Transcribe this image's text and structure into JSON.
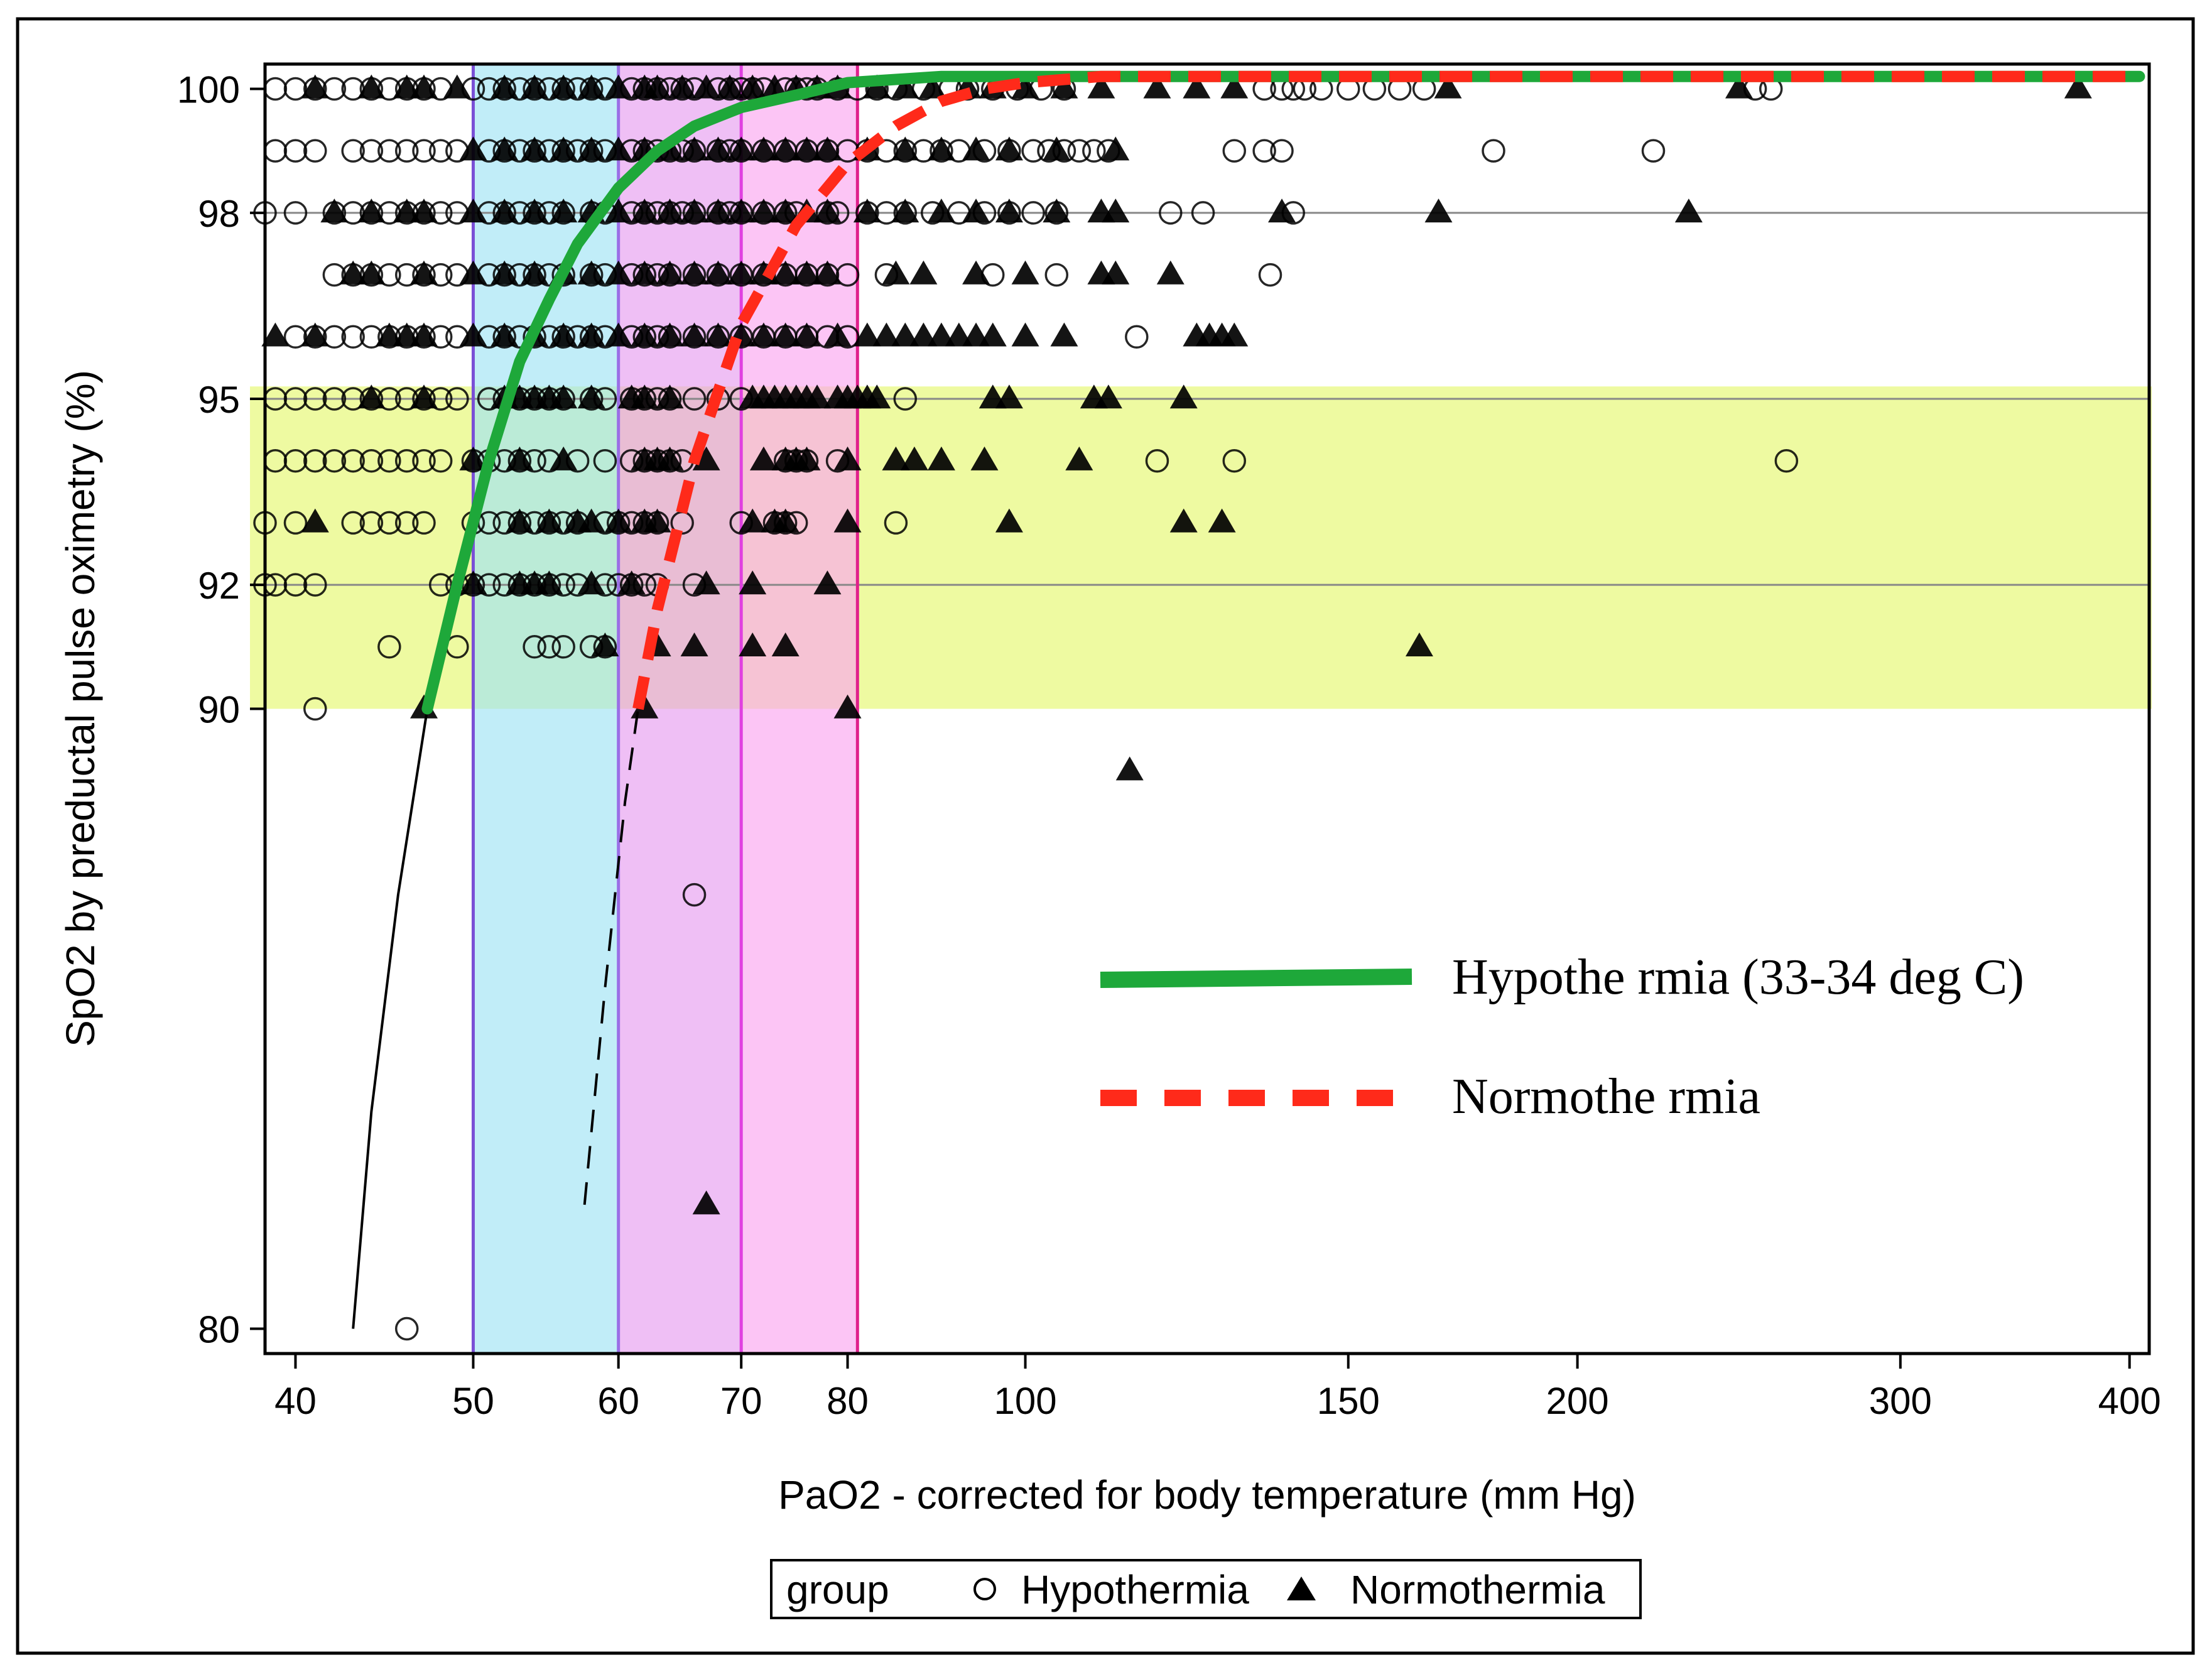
{
  "chart_data": {
    "type": "scatter",
    "xlabel": "PaO2 - corrected for body temperature (mm Hg)",
    "ylabel": "SpO2 by preductal pulse oximetry (%)",
    "x_scale": "log",
    "x_ticks": [
      40,
      50,
      60,
      70,
      80,
      100,
      150,
      200,
      300,
      400
    ],
    "y_ticks": [
      80,
      90,
      92,
      95,
      98,
      100
    ],
    "x_range": [
      38.5,
      410
    ],
    "y_range": [
      79.6,
      100.4
    ],
    "grid": "horizontal gridlines at 92, 95 and 98",
    "shaded_regions": [
      {
        "name": "SpO2 90-95 band",
        "axis": "y",
        "from": 90,
        "to": 95.2,
        "color": "#eaf98a"
      },
      {
        "name": "PaO2 50-60 band",
        "axis": "x",
        "from": 50,
        "to": 60,
        "color": "#9fe3f5"
      },
      {
        "name": "PaO2 60-70 band",
        "axis": "x",
        "from": 60,
        "to": 70,
        "color": "#e79cf0"
      },
      {
        "name": "PaO2 70-80 band",
        "axis": "x",
        "from": 70,
        "to": 81,
        "color": "#fba6ef"
      }
    ],
    "vertical_lines": [
      {
        "x": 50,
        "color": "#7a4fd6"
      },
      {
        "x": 60,
        "color": "#9a6ee6"
      },
      {
        "x": 70,
        "color": "#e040e0"
      },
      {
        "x": 81,
        "color": "#e0208c"
      }
    ],
    "legend": {
      "title": "group",
      "entries": [
        {
          "label": "Hypothermia",
          "marker": "circle"
        },
        {
          "label": "Normothermia",
          "marker": "triangle"
        }
      ],
      "placement": "bottom-center"
    },
    "curve_legend": {
      "entries": [
        {
          "label": "Hypothe rmia (33-34 deg C)",
          "style": "solid",
          "color": "#1ea83a"
        },
        {
          "label": "Normothe rmia",
          "style": "dashed",
          "color": "#ff2a1a"
        }
      ],
      "placement": "lower-right inside plot"
    },
    "series": [
      {
        "name": "Hypothermia (33-34 deg C)",
        "kind": "fit-curve",
        "color": "#1ea83a",
        "style": "solid",
        "x": [
          47.2,
          49,
          51,
          53,
          55,
          57,
          60,
          63,
          66,
          70,
          75,
          80,
          90,
          100,
          405
        ],
        "y": [
          90,
          92,
          94,
          95.6,
          96.6,
          97.5,
          98.4,
          99,
          99.4,
          99.7,
          99.9,
          100.1,
          100.2,
          100.2,
          100.2
        ]
      },
      {
        "name": "Normothermia",
        "kind": "fit-curve",
        "color": "#ff2a1a",
        "style": "dashed",
        "x": [
          61.5,
          63,
          66,
          70,
          75,
          80,
          85,
          90,
          95,
          100,
          110,
          405
        ],
        "y": [
          90,
          91.6,
          94,
          96.2,
          97.8,
          98.8,
          99.4,
          99.8,
          100,
          100.1,
          100.2,
          100.2
        ]
      },
      {
        "name": "Hypothermia extrapolation",
        "kind": "thin-line",
        "color": "#000000",
        "style": "solid",
        "x": [
          43,
          44,
          45.5,
          47.2
        ],
        "y": [
          80,
          83.5,
          87,
          90
        ]
      },
      {
        "name": "Normothermia extrapolation",
        "kind": "thin-line",
        "color": "#000000",
        "style": "dashed",
        "x": [
          57.5,
          59,
          60.5,
          61.5
        ],
        "y": [
          82,
          85.5,
          88.5,
          90
        ]
      },
      {
        "name": "Hypothermia",
        "kind": "points",
        "marker": "circle",
        "x": [
          39,
          40,
          41,
          42,
          43,
          44,
          45,
          46,
          47,
          48,
          50,
          51,
          52,
          53,
          54,
          55,
          56,
          57,
          58,
          59,
          61,
          62,
          63,
          64,
          65,
          66,
          68,
          69,
          70,
          71,
          72,
          74,
          75,
          76,
          77,
          79,
          81,
          83,
          85,
          88,
          91,
          93,
          96,
          99,
          102,
          105,
          135,
          138,
          140,
          142,
          145,
          150,
          155,
          160,
          165,
          250,
          255,
          39,
          40,
          41,
          43,
          44,
          45,
          46,
          47,
          48,
          49,
          51,
          52,
          53,
          54,
          55,
          56,
          57,
          58,
          59,
          61,
          62,
          63,
          64,
          65,
          66,
          68,
          69,
          70,
          72,
          74,
          76,
          78,
          80,
          82,
          84,
          86,
          88,
          90,
          92,
          95,
          98,
          101,
          103,
          105,
          107,
          109,
          111,
          130,
          135,
          138,
          180,
          220,
          38.5,
          40,
          42,
          43,
          44,
          45,
          46,
          47,
          48,
          49,
          51,
          52,
          53,
          54,
          55,
          56,
          58,
          59,
          61,
          62,
          63,
          64,
          65,
          66,
          68,
          69,
          70,
          72,
          74,
          75,
          78,
          79,
          82,
          84,
          86,
          89,
          92,
          95,
          98,
          101,
          104,
          120,
          125,
          140,
          42,
          43,
          44,
          45,
          46,
          47,
          48,
          49,
          51,
          52,
          53,
          54,
          55,
          56,
          58,
          59,
          61,
          62,
          63,
          64,
          66,
          68,
          70,
          72,
          74,
          76,
          78,
          80,
          84,
          96,
          104,
          136,
          40,
          41,
          42,
          43,
          44,
          45,
          46,
          47,
          48,
          49,
          51,
          52,
          53,
          54,
          55,
          56,
          57,
          58,
          59,
          61,
          62,
          63,
          64,
          66,
          68,
          70,
          72,
          74,
          76,
          78,
          80,
          115,
          39,
          40,
          41,
          42,
          43,
          44,
          45,
          46,
          47,
          48,
          49,
          51,
          52,
          53,
          54,
          55,
          56,
          58,
          59,
          61,
          62,
          63,
          64,
          66,
          68,
          70,
          86,
          39,
          40,
          41,
          42,
          43,
          44,
          45,
          46,
          47,
          48,
          50,
          51,
          52,
          53,
          54,
          55,
          57,
          59,
          61,
          62,
          63,
          64,
          65,
          74,
          75,
          76,
          79,
          118,
          130,
          260,
          38.5,
          40,
          43,
          44,
          45,
          46,
          47,
          50,
          51,
          52,
          53,
          54,
          55,
          56,
          57,
          59,
          60,
          61,
          62,
          63,
          65,
          70,
          73,
          74,
          75,
          85,
          38.5,
          39,
          40,
          41,
          48,
          49,
          50,
          51,
          52,
          53,
          54,
          55,
          56,
          57,
          59,
          60,
          61,
          62,
          63,
          66,
          45,
          49,
          54,
          55,
          56,
          58,
          59,
          41,
          66,
          46
        ],
        "y": [
          100,
          100,
          100,
          100,
          100,
          100,
          100,
          100,
          100,
          100,
          100,
          100,
          100,
          100,
          100,
          100,
          100,
          100,
          100,
          100,
          100,
          100,
          100,
          100,
          100,
          100,
          100,
          100,
          100,
          100,
          100,
          100,
          100,
          100,
          100,
          100,
          100,
          100,
          100,
          100,
          100,
          100,
          100,
          100,
          100,
          100,
          100,
          100,
          100,
          100,
          100,
          100,
          100,
          100,
          100,
          100,
          100,
          99,
          99,
          99,
          99,
          99,
          99,
          99,
          99,
          99,
          99,
          99,
          99,
          99,
          99,
          99,
          99,
          99,
          99,
          99,
          99,
          99,
          99,
          99,
          99,
          99,
          99,
          99,
          99,
          99,
          99,
          99,
          99,
          99,
          99,
          99,
          99,
          99,
          99,
          99,
          99,
          99,
          99,
          99,
          99,
          99,
          99,
          99,
          99,
          99,
          99,
          99,
          99,
          98,
          98,
          98,
          98,
          98,
          98,
          98,
          98,
          98,
          98,
          98,
          98,
          98,
          98,
          98,
          98,
          98,
          98,
          98,
          98,
          98,
          98,
          98,
          98,
          98,
          98,
          98,
          98,
          98,
          98,
          98,
          98,
          98,
          98,
          98,
          98,
          98,
          98,
          98,
          98,
          98,
          98,
          98,
          98,
          97,
          97,
          97,
          97,
          97,
          97,
          97,
          97,
          97,
          97,
          97,
          97,
          97,
          97,
          97,
          97,
          97,
          97,
          97,
          97,
          97,
          97,
          97,
          97,
          97,
          97,
          97,
          97,
          97,
          97,
          97,
          97,
          96,
          96,
          96,
          96,
          96,
          96,
          96,
          96,
          96,
          96,
          96,
          96,
          96,
          96,
          96,
          96,
          96,
          96,
          96,
          96,
          96,
          96,
          96,
          96,
          96,
          96,
          96,
          96,
          96,
          96,
          96,
          96,
          95,
          95,
          95,
          95,
          95,
          95,
          95,
          95,
          95,
          95,
          95,
          95,
          95,
          95,
          95,
          95,
          95,
          95,
          95,
          95,
          95,
          95,
          95,
          95,
          95,
          95,
          95,
          94,
          94,
          94,
          94,
          94,
          94,
          94,
          94,
          94,
          94,
          94,
          94,
          94,
          94,
          94,
          94,
          94,
          94,
          94,
          94,
          94,
          94,
          94,
          94,
          94,
          94,
          94,
          94,
          94,
          94,
          93,
          93,
          93,
          93,
          93,
          93,
          93,
          93,
          93,
          93,
          93,
          93,
          93,
          93,
          93,
          93,
          93,
          93,
          93,
          93,
          93,
          93,
          93,
          93,
          93,
          93,
          92,
          92,
          92,
          92,
          92,
          92,
          92,
          92,
          92,
          92,
          92,
          92,
          92,
          92,
          92,
          92,
          92,
          92,
          92,
          92,
          91,
          91,
          91,
          91,
          91,
          91,
          91,
          90,
          87,
          80
        ]
      },
      {
        "name": "Normothermia",
        "kind": "points",
        "marker": "triangle",
        "x": [
          41,
          44,
          46,
          47,
          49,
          52,
          54,
          56,
          58,
          60,
          62,
          63,
          65,
          67,
          69,
          71,
          73,
          75,
          77,
          79,
          83,
          86,
          89,
          93,
          96,
          100,
          105,
          110,
          118,
          124,
          130,
          170,
          245,
          375,
          50,
          52,
          54,
          56,
          58,
          60,
          62,
          64,
          66,
          68,
          70,
          72,
          74,
          76,
          78,
          82,
          86,
          90,
          94,
          98,
          104,
          112,
          42,
          44,
          46,
          47,
          50,
          52,
          54,
          56,
          58,
          60,
          62,
          64,
          66,
          68,
          70,
          72,
          74,
          76,
          78,
          82,
          86,
          90,
          94,
          98,
          104,
          110,
          112,
          138,
          168,
          230,
          43,
          44,
          47,
          50,
          52,
          54,
          56,
          58,
          60,
          62,
          64,
          66,
          68,
          70,
          72,
          74,
          76,
          78,
          85,
          88,
          94,
          100,
          110,
          112,
          120,
          39,
          41,
          45,
          46,
          47,
          50,
          52,
          54,
          56,
          58,
          60,
          62,
          64,
          66,
          68,
          70,
          72,
          74,
          76,
          79,
          82,
          84,
          86,
          88,
          90,
          92,
          94,
          96,
          100,
          105,
          124,
          126,
          128,
          130,
          44,
          47,
          52,
          53,
          54,
          55,
          56,
          58,
          61,
          62,
          64,
          71,
          72,
          73,
          74,
          75,
          76,
          77,
          79,
          80,
          81,
          82,
          83,
          96,
          98,
          109,
          111,
          122,
          50,
          53,
          56,
          62,
          63,
          64,
          67,
          72,
          74,
          75,
          76,
          80,
          85,
          87,
          90,
          95,
          107,
          41,
          53,
          55,
          57,
          58,
          60,
          62,
          63,
          71,
          73,
          74,
          80,
          98,
          122,
          128,
          50,
          53,
          54,
          55,
          58,
          61,
          67,
          71,
          78,
          59,
          63,
          66,
          71,
          74,
          164,
          47,
          62,
          80,
          114,
          67
        ],
        "y": [
          100,
          100,
          100,
          100,
          100,
          100,
          100,
          100,
          100,
          100,
          100,
          100,
          100,
          100,
          100,
          100,
          100,
          100,
          100,
          100,
          100,
          100,
          100,
          100,
          100,
          100,
          100,
          100,
          100,
          100,
          100,
          100,
          100,
          100,
          99,
          99,
          99,
          99,
          99,
          99,
          99,
          99,
          99,
          99,
          99,
          99,
          99,
          99,
          99,
          99,
          99,
          99,
          99,
          99,
          99,
          99,
          98,
          98,
          98,
          98,
          98,
          98,
          98,
          98,
          98,
          98,
          98,
          98,
          98,
          98,
          98,
          98,
          98,
          98,
          98,
          98,
          98,
          98,
          98,
          98,
          98,
          98,
          98,
          98,
          98,
          98,
          97,
          97,
          97,
          97,
          97,
          97,
          97,
          97,
          97,
          97,
          97,
          97,
          97,
          97,
          97,
          97,
          97,
          97,
          97,
          97,
          97,
          97,
          97,
          97,
          97,
          96,
          96,
          96,
          96,
          96,
          96,
          96,
          96,
          96,
          96,
          96,
          96,
          96,
          96,
          96,
          96,
          96,
          96,
          96,
          96,
          96,
          96,
          96,
          96,
          96,
          96,
          96,
          96,
          96,
          96,
          96,
          96,
          96,
          96,
          95,
          95,
          95,
          95,
          95,
          95,
          95,
          95,
          95,
          95,
          95,
          95,
          95,
          95,
          95,
          95,
          95,
          95,
          95,
          95,
          95,
          95,
          95,
          95,
          95,
          95,
          95,
          95,
          94,
          94,
          94,
          94,
          94,
          94,
          94,
          94,
          94,
          94,
          94,
          94,
          94,
          94,
          94,
          94,
          94,
          93,
          93,
          93,
          93,
          93,
          93,
          93,
          93,
          93,
          93,
          93,
          93,
          93,
          93,
          93,
          92,
          92,
          92,
          92,
          92,
          92,
          92,
          92,
          92,
          91,
          91,
          91,
          91,
          91,
          91,
          90,
          90,
          90,
          89,
          82
        ]
      }
    ]
  }
}
